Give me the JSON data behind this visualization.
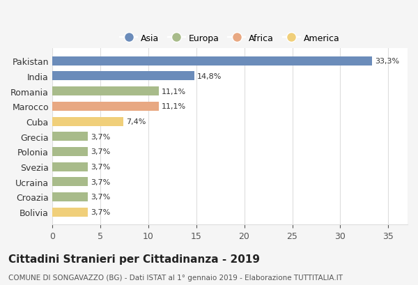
{
  "countries": [
    "Pakistan",
    "India",
    "Romania",
    "Marocco",
    "Cuba",
    "Grecia",
    "Polonia",
    "Svezia",
    "Ucraina",
    "Croazia",
    "Bolivia"
  ],
  "values": [
    33.3,
    14.8,
    11.1,
    11.1,
    7.4,
    3.7,
    3.7,
    3.7,
    3.7,
    3.7,
    3.7
  ],
  "labels": [
    "33,3%",
    "14,8%",
    "11,1%",
    "11,1%",
    "7,4%",
    "3,7%",
    "3,7%",
    "3,7%",
    "3,7%",
    "3,7%",
    "3,7%"
  ],
  "colors": [
    "#6b8cba",
    "#6b8cba",
    "#a8bb8a",
    "#e8a882",
    "#f0cf7a",
    "#a8bb8a",
    "#a8bb8a",
    "#a8bb8a",
    "#a8bb8a",
    "#a8bb8a",
    "#f0cf7a"
  ],
  "legend_labels": [
    "Asia",
    "Europa",
    "Africa",
    "America"
  ],
  "legend_colors": [
    "#6b8cba",
    "#a8bb8a",
    "#e8a882",
    "#f0cf7a"
  ],
  "title": "Cittadini Stranieri per Cittadinanza - 2019",
  "subtitle": "COMUNE DI SONGAVAZZO (BG) - Dati ISTAT al 1° gennaio 2019 - Elaborazione TUTTITALIA.IT",
  "xlim": [
    0,
    37
  ],
  "xticks": [
    0,
    5,
    10,
    15,
    20,
    25,
    30,
    35
  ],
  "background_color": "#f5f5f5",
  "bar_background": "#ffffff",
  "grid_color": "#dddddd"
}
